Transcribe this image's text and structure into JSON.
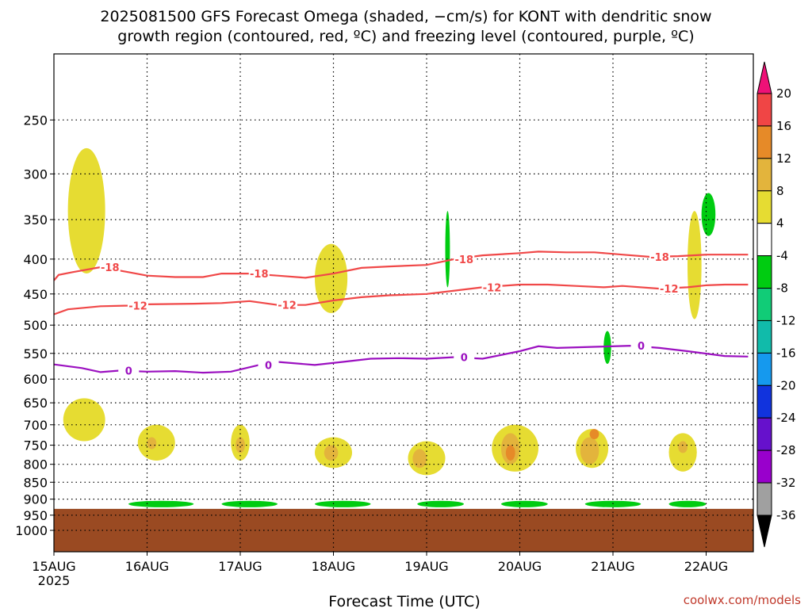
{
  "title_line1": "2025081500 GFS Forecast Omega (shaded, −cm/s) for KONT with dendritic snow",
  "title_line2": "growth region (contoured, red, ºC) and freezing level (contoured, purple, ºC)",
  "credit": "coolwx.com/models",
  "colors": {
    "ground": "#9a4a22",
    "snow_contour": "#f04848",
    "freezing_contour": "#9b10c0",
    "grid": "#000000"
  },
  "chart_data": {
    "type": "heatmap",
    "xlabel": "Forecast Time (UTC)",
    "x_ticks": [
      "15AUG",
      "16AUG",
      "17AUG",
      "18AUG",
      "19AUG",
      "20AUG",
      "21AUG",
      "22AUG"
    ],
    "x_year_label": "2025",
    "x_range_days": [
      0,
      7.45
    ],
    "y_axis": "pressure (hPa), log scale, inverted",
    "y_range_hPa": [
      1075,
      200
    ],
    "y_ticks": [
      250,
      300,
      350,
      400,
      450,
      500,
      550,
      600,
      650,
      700,
      750,
      800,
      850,
      900,
      950,
      1000
    ],
    "ground_top_hPa": 930,
    "grid": true,
    "colorbar": {
      "levels": [
        -36,
        -32,
        -28,
        -24,
        -20,
        -16,
        -12,
        -8,
        -4,
        4,
        8,
        12,
        16,
        20
      ],
      "colors": [
        "#000000",
        "#a0a0a0",
        "#9900cc",
        "#6611cc",
        "#1133dd",
        "#1599ee",
        "#11bbaa",
        "#11cc77",
        "#00cc11",
        "#ffffff",
        "#e6dc32",
        "#e3b43c",
        "#e68a28",
        "#f04545",
        "#ee1177"
      ]
    },
    "contours": [
      {
        "label": "-18",
        "color": "red",
        "points": [
          [
            0,
            430
          ],
          [
            0.05,
            422
          ],
          [
            0.2,
            418
          ],
          [
            0.5,
            411
          ],
          [
            0.8,
            418
          ],
          [
            1.0,
            423
          ],
          [
            1.3,
            425
          ],
          [
            1.6,
            425
          ],
          [
            1.8,
            420
          ],
          [
            2.1,
            420
          ],
          [
            2.4,
            423
          ],
          [
            2.7,
            426
          ],
          [
            3.0,
            420
          ],
          [
            3.3,
            412
          ],
          [
            3.6,
            410
          ],
          [
            4.0,
            408
          ],
          [
            4.3,
            400
          ],
          [
            4.6,
            395
          ],
          [
            5.0,
            392
          ],
          [
            5.2,
            390
          ],
          [
            5.5,
            391
          ],
          [
            5.8,
            391
          ],
          [
            6.1,
            394
          ],
          [
            6.4,
            397
          ],
          [
            6.7,
            396
          ],
          [
            7.0,
            394
          ],
          [
            7.2,
            394
          ],
          [
            7.45,
            394
          ]
        ]
      },
      {
        "label": "-12",
        "color": "red",
        "points": [
          [
            0,
            482
          ],
          [
            0.15,
            474
          ],
          [
            0.5,
            469
          ],
          [
            0.8,
            468
          ],
          [
            1.0,
            466
          ],
          [
            1.5,
            465
          ],
          [
            1.8,
            464
          ],
          [
            2.1,
            461
          ],
          [
            2.4,
            467
          ],
          [
            2.7,
            467
          ],
          [
            3.0,
            460
          ],
          [
            3.3,
            455
          ],
          [
            3.6,
            452
          ],
          [
            4.0,
            450
          ],
          [
            4.3,
            445
          ],
          [
            4.6,
            440
          ],
          [
            5.0,
            436
          ],
          [
            5.3,
            436
          ],
          [
            5.6,
            438
          ],
          [
            5.9,
            440
          ],
          [
            6.1,
            438
          ],
          [
            6.5,
            442
          ],
          [
            6.8,
            440
          ],
          [
            7.0,
            437
          ],
          [
            7.2,
            436
          ],
          [
            7.45,
            436
          ]
        ]
      },
      {
        "label": "0",
        "color": "purple",
        "points": [
          [
            0,
            571
          ],
          [
            0.3,
            578
          ],
          [
            0.5,
            586
          ],
          [
            0.7,
            583
          ],
          [
            1.0,
            585
          ],
          [
            1.3,
            584
          ],
          [
            1.6,
            587
          ],
          [
            1.9,
            585
          ],
          [
            2.2,
            572
          ],
          [
            2.4,
            566
          ],
          [
            2.8,
            572
          ],
          [
            3.1,
            566
          ],
          [
            3.4,
            560
          ],
          [
            3.7,
            559
          ],
          [
            4.0,
            560
          ],
          [
            4.3,
            557
          ],
          [
            4.6,
            560
          ],
          [
            5.0,
            546
          ],
          [
            5.2,
            537
          ],
          [
            5.4,
            540
          ],
          [
            5.8,
            538
          ],
          [
            6.2,
            536
          ],
          [
            6.5,
            540
          ],
          [
            6.8,
            546
          ],
          [
            7.2,
            555
          ],
          [
            7.45,
            556
          ]
        ]
      }
    ],
    "omega_shading": [
      {
        "band": "4 to 8",
        "x": [
          0.15,
          0.55
        ],
        "p": [
          275,
          420
        ]
      },
      {
        "band": "4 to 8",
        "x": [
          0.1,
          0.55
        ],
        "p": [
          640,
          740
        ]
      },
      {
        "band": "4 to 8",
        "x": [
          0.9,
          1.3
        ],
        "p": [
          700,
          790
        ]
      },
      {
        "band": "8 to 12",
        "x": [
          1.0,
          1.1
        ],
        "p": [
          730,
          760
        ]
      },
      {
        "band": "4 to 8",
        "x": [
          1.9,
          2.1
        ],
        "p": [
          700,
          790
        ]
      },
      {
        "band": "8 to 12",
        "x": [
          1.95,
          2.05
        ],
        "p": [
          730,
          770
        ]
      },
      {
        "band": "4 to 8",
        "x": [
          2.8,
          3.15
        ],
        "p": [
          380,
          480
        ]
      },
      {
        "band": "4 to 8",
        "x": [
          2.8,
          3.2
        ],
        "p": [
          730,
          810
        ]
      },
      {
        "band": "8 to 12",
        "x": [
          2.9,
          3.05
        ],
        "p": [
          750,
          790
        ]
      },
      {
        "band": "4 to 8",
        "x": [
          3.8,
          4.2
        ],
        "p": [
          740,
          830
        ]
      },
      {
        "band": "8 to 12",
        "x": [
          3.85,
          4.0
        ],
        "p": [
          760,
          810
        ]
      },
      {
        "band": "4 to 8",
        "x": [
          4.7,
          5.2
        ],
        "p": [
          700,
          820
        ]
      },
      {
        "band": "8 to 12",
        "x": [
          4.8,
          5.0
        ],
        "p": [
          720,
          800
        ]
      },
      {
        "band": "12 to 16",
        "x": [
          4.85,
          4.95
        ],
        "p": [
          750,
          790
        ]
      },
      {
        "band": "4 to 8",
        "x": [
          5.6,
          5.95
        ],
        "p": [
          710,
          810
        ]
      },
      {
        "band": "8 to 12",
        "x": [
          5.65,
          5.85
        ],
        "p": [
          730,
          800
        ]
      },
      {
        "band": "12 to 16",
        "x": [
          5.75,
          5.85
        ],
        "p": [
          710,
          735
        ]
      },
      {
        "band": "4 to 8",
        "x": [
          6.6,
          6.9
        ],
        "p": [
          720,
          820
        ]
      },
      {
        "band": "8 to 12",
        "x": [
          6.7,
          6.8
        ],
        "p": [
          740,
          770
        ]
      },
      {
        "band": "4 to 8",
        "x": [
          6.8,
          6.95
        ],
        "p": [
          340,
          490
        ]
      },
      {
        "band": "-4 to -8",
        "x": [
          6.95,
          7.1
        ],
        "p": [
          320,
          370
        ]
      },
      {
        "band": "-4 to -8",
        "x": [
          5.9,
          5.98
        ],
        "p": [
          510,
          570
        ]
      },
      {
        "band": "-4 to -8",
        "x": [
          4.2,
          4.25
        ],
        "p": [
          340,
          440
        ]
      },
      {
        "band": "-4 to -8",
        "x": [
          0.8,
          1.5
        ],
        "p": [
          905,
          925
        ]
      },
      {
        "band": "-4 to -8",
        "x": [
          1.8,
          2.4
        ],
        "p": [
          905,
          925
        ]
      },
      {
        "band": "-4 to -8",
        "x": [
          2.8,
          3.4
        ],
        "p": [
          905,
          925
        ]
      },
      {
        "band": "-4 to -8",
        "x": [
          3.9,
          4.4
        ],
        "p": [
          905,
          925
        ]
      },
      {
        "band": "-4 to -8",
        "x": [
          4.8,
          5.3
        ],
        "p": [
          905,
          925
        ]
      },
      {
        "band": "-4 to -8",
        "x": [
          5.7,
          6.3
        ],
        "p": [
          905,
          925
        ]
      },
      {
        "band": "-4 to -8",
        "x": [
          6.6,
          7.0
        ],
        "p": [
          905,
          925
        ]
      }
    ]
  }
}
